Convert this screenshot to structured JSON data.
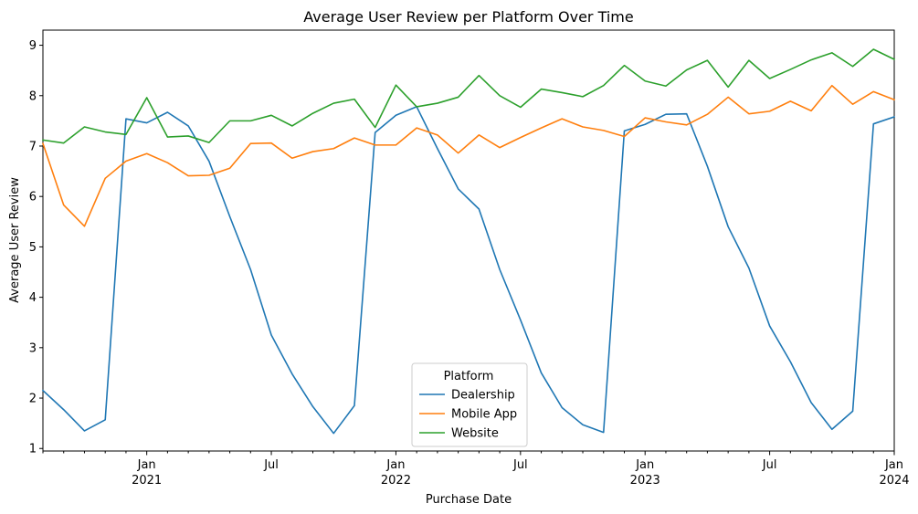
{
  "chart_data": {
    "type": "line",
    "title": "Average User Review per Platform Over Time",
    "xlabel": "Purchase Date",
    "ylabel": "Average User Review",
    "ylim": [
      0.95,
      9.3
    ],
    "yticks": [
      1,
      2,
      3,
      4,
      5,
      6,
      7,
      8,
      9
    ],
    "x_range": [
      "2020-08",
      "2024-01"
    ],
    "x_ticks": [
      {
        "date": "2021-01",
        "label": "Jan",
        "year": "2021"
      },
      {
        "date": "2021-07",
        "label": "Jul",
        "year": ""
      },
      {
        "date": "2022-01",
        "label": "Jan",
        "year": "2022"
      },
      {
        "date": "2022-07",
        "label": "Jul",
        "year": ""
      },
      {
        "date": "2023-01",
        "label": "Jan",
        "year": "2023"
      },
      {
        "date": "2023-07",
        "label": "Jul",
        "year": ""
      },
      {
        "date": "2024-01",
        "label": "Jan",
        "year": "2024"
      }
    ],
    "x": [
      "2020-08",
      "2020-09",
      "2020-10",
      "2020-11",
      "2020-12",
      "2021-01",
      "2021-02",
      "2021-03",
      "2021-04",
      "2021-05",
      "2021-06",
      "2021-07",
      "2021-08",
      "2021-09",
      "2021-10",
      "2021-11",
      "2021-12",
      "2022-01",
      "2022-02",
      "2022-03",
      "2022-04",
      "2022-05",
      "2022-06",
      "2022-07",
      "2022-08",
      "2022-09",
      "2022-10",
      "2022-11",
      "2022-12",
      "2023-01",
      "2023-02",
      "2023-03",
      "2023-04",
      "2023-05",
      "2023-06",
      "2023-07",
      "2023-08",
      "2023-09",
      "2023-10",
      "2023-11",
      "2023-12",
      "2024-01"
    ],
    "series": [
      {
        "name": "Dealership",
        "color": "#1f77b4",
        "values": [
          2.15,
          1.77,
          1.35,
          1.57,
          7.54,
          7.46,
          7.67,
          7.4,
          6.7,
          5.6,
          4.55,
          3.25,
          2.48,
          1.83,
          1.3,
          1.85,
          7.27,
          7.61,
          7.78,
          6.95,
          6.15,
          5.75,
          4.55,
          3.55,
          2.5,
          1.81,
          1.47,
          1.32,
          7.3,
          7.43,
          7.63,
          7.64,
          6.6,
          5.4,
          4.58,
          3.43,
          2.72,
          1.91,
          1.38,
          1.74,
          7.44,
          7.58
        ]
      },
      {
        "name": "Mobile App",
        "color": "#ff7f0e",
        "values": [
          7.05,
          5.83,
          5.41,
          6.36,
          6.7,
          6.85,
          6.67,
          6.41,
          6.42,
          6.56,
          7.05,
          7.06,
          6.76,
          6.89,
          6.95,
          7.16,
          7.02,
          7.02,
          7.36,
          7.22,
          6.86,
          7.22,
          6.97,
          7.17,
          7.36,
          7.54,
          7.38,
          7.31,
          7.19,
          7.56,
          7.48,
          7.42,
          7.63,
          7.97,
          7.64,
          7.69,
          7.89,
          7.7,
          8.2,
          7.83,
          8.08,
          7.92
        ]
      },
      {
        "name": "Website",
        "color": "#2ca02c",
        "values": [
          7.12,
          7.06,
          7.38,
          7.28,
          7.23,
          7.96,
          7.18,
          7.2,
          7.07,
          7.5,
          7.5,
          7.61,
          7.4,
          7.65,
          7.85,
          7.93,
          7.37,
          8.21,
          7.78,
          7.85,
          7.97,
          8.4,
          8.0,
          7.77,
          8.13,
          8.06,
          7.98,
          8.2,
          8.6,
          8.29,
          8.19,
          8.51,
          8.7,
          8.17,
          8.7,
          8.34,
          8.52,
          8.71,
          8.85,
          8.58,
          8.92,
          8.72
        ]
      }
    ],
    "legend": {
      "title": "Platform",
      "placement": "lower center"
    },
    "grid": false
  }
}
